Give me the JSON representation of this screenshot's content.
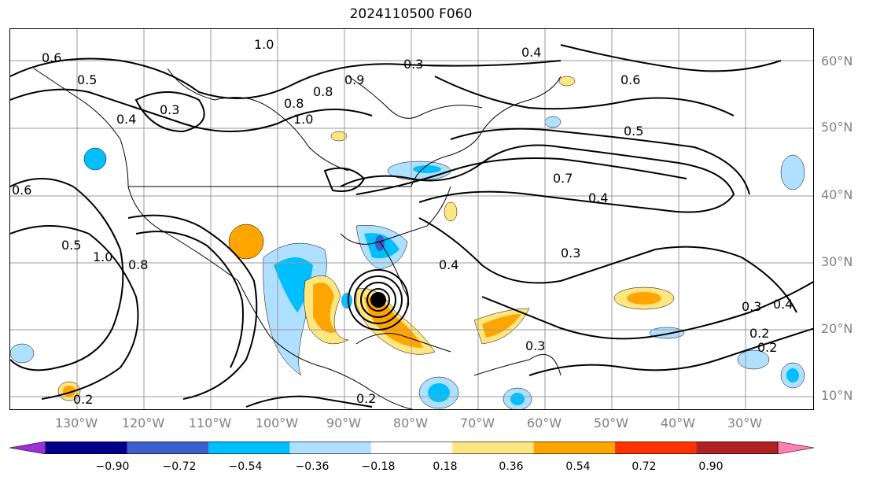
{
  "title": "2024110500 F060",
  "lat_labels": [
    "60°N",
    "50°N",
    "40°N",
    "30°N",
    "20°N",
    "10°N"
  ],
  "lon_labels": [
    "130°W",
    "120°W",
    "110°W",
    "100°W",
    "90°W",
    "80°W",
    "70°W",
    "60°W",
    "50°W",
    "40°W",
    "30°W"
  ],
  "contour_labels": [
    "1.0",
    "0.6",
    "0.5",
    "0.4",
    "0.3",
    "0.8",
    "0.6",
    "0.5",
    "0.7",
    "0.4",
    "0.3",
    "0.2",
    "1.0",
    "0.8",
    "0.5",
    "0.4",
    "0.3",
    "0.2",
    "0.2",
    "0.6",
    "0.3",
    "0.4",
    "0.9",
    "1.0",
    "0.8",
    "0.4",
    "0.3",
    "0.2"
  ],
  "colorbar": {
    "ticks": [
      "−0.90",
      "−0.72",
      "−0.54",
      "−0.36",
      "−0.18",
      "0.18",
      "0.36",
      "0.54",
      "0.72",
      "0.90"
    ],
    "colors": [
      "#9b30d9",
      "#00008b",
      "#3a5fcd",
      "#00bfff",
      "#b0e0ff",
      "#ffffff",
      "#ffe680",
      "#ffa500",
      "#ff3300",
      "#b22222",
      "#ff7fb0"
    ]
  }
}
